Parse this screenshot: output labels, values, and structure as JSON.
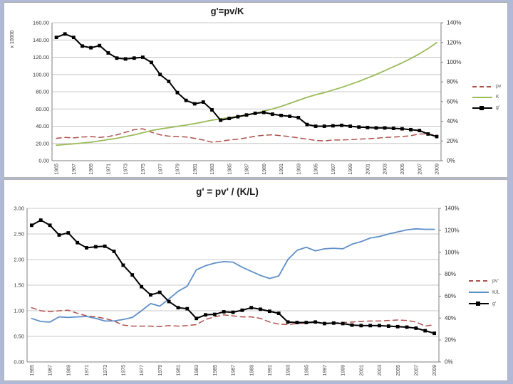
{
  "page": {
    "background_color": "#b0b9d6",
    "chart_area_color": "#ffffff"
  },
  "chart_data": [
    {
      "type": "line",
      "title": "g'=pv/K",
      "left_axis_label": "x 10000",
      "grid": true,
      "legend_position": "right",
      "left_axis": {
        "min": 0,
        "max": 160,
        "step": 20,
        "tick_labels": [
          "160.00",
          "140.00",
          "120.00",
          "100.00",
          "80.00",
          "60.00",
          "40.00",
          "20.00",
          "0.00"
        ]
      },
      "right_axis": {
        "min": 0,
        "max": 140,
        "step": 20,
        "tick_labels": [
          "140%",
          "120%",
          "100%",
          "80%",
          "60%",
          "40%",
          "20%",
          "0%"
        ]
      },
      "x_axis": {
        "start_year": 1965,
        "end_year": 2009,
        "tick_labels": [
          "1965",
          "1967",
          "1969",
          "1971",
          "1973",
          "1975",
          "1977",
          "1979",
          "1981",
          "1983",
          "1985",
          "1987",
          "1989",
          "1991",
          "1993",
          "1995",
          "1997",
          "1999",
          "2001",
          "2003",
          "2005",
          "2007",
          "2009"
        ]
      },
      "series": [
        {
          "name": "pv",
          "color": "#b0504a",
          "dash": true,
          "marker": false,
          "values": [
            26,
            27,
            26.5,
            27.5,
            28,
            27,
            28,
            30,
            33,
            36,
            37,
            33,
            30,
            28.5,
            28,
            27.5,
            26,
            24,
            21.5,
            22.5,
            24,
            25,
            26.5,
            28.5,
            29.5,
            30,
            29,
            28,
            26.5,
            25,
            23.5,
            23,
            24,
            24,
            24.5,
            25,
            25.5,
            26,
            27,
            27.5,
            28,
            29,
            31,
            31,
            29
          ]
        },
        {
          "name": "K",
          "color": "#9bbb59",
          "dash": false,
          "marker": false,
          "values": [
            18,
            18.8,
            19.6,
            20.5,
            21.5,
            23,
            24.5,
            26,
            28,
            30,
            32.5,
            35,
            36.8,
            38.3,
            39.8,
            41.3,
            43,
            45,
            47,
            48.5,
            50,
            51.5,
            53.2,
            55,
            57.5,
            60,
            63,
            66.5,
            70,
            73.5,
            76.5,
            79,
            82,
            85,
            88.5,
            92,
            96,
            100,
            104.5,
            109,
            113.5,
            118.5,
            124,
            130,
            137
          ]
        },
        {
          "name": "g'",
          "color": "#000000",
          "dash": false,
          "marker": true,
          "values": [
            143,
            147,
            143,
            133,
            131,
            133.5,
            125,
            119,
            118,
            119,
            120,
            114,
            100,
            92,
            79,
            70,
            66,
            68,
            59,
            47,
            49,
            51,
            53,
            55,
            56,
            54,
            52.5,
            51.5,
            50,
            42,
            40,
            40,
            40.5,
            41,
            40,
            39,
            38.5,
            38,
            38,
            37.5,
            37,
            36,
            35,
            31,
            28
          ]
        }
      ]
    },
    {
      "type": "line",
      "title": "g' = pv' / (K/L)",
      "left_axis_label": "",
      "grid": true,
      "legend_position": "right",
      "left_axis": {
        "min": 0,
        "max": 3,
        "step": 0.5,
        "tick_labels": [
          "3.00",
          "2.50",
          "2.00",
          "1.50",
          "1.00",
          "0.50",
          "0.00"
        ]
      },
      "right_axis": {
        "min": 0,
        "max": 140,
        "step": 20,
        "tick_labels": [
          "140%",
          "120%",
          "100%",
          "80%",
          "60%",
          "40%",
          "20%",
          "0%"
        ]
      },
      "x_axis": {
        "start_year": 1965,
        "end_year": 2009,
        "tick_labels": [
          "1965",
          "1967",
          "1969",
          "1971",
          "1973",
          "1975",
          "1977",
          "1979",
          "1981",
          "1983",
          "1985",
          "1987",
          "1989",
          "1991",
          "1993",
          "1995",
          "1997",
          "1999",
          "2001",
          "2003",
          "2005",
          "2007",
          "2009"
        ]
      },
      "series": [
        {
          "name": "pv'",
          "color": "#b0504a",
          "dash": true,
          "marker": false,
          "values": [
            1.06,
            1.0,
            0.98,
            1.0,
            1.01,
            0.95,
            0.9,
            0.88,
            0.85,
            0.8,
            0.72,
            0.7,
            0.7,
            0.7,
            0.69,
            0.71,
            0.7,
            0.71,
            0.73,
            0.83,
            0.88,
            0.92,
            0.9,
            0.88,
            0.88,
            0.85,
            0.78,
            0.74,
            0.73,
            0.75,
            0.76,
            0.77,
            0.76,
            0.76,
            0.77,
            0.78,
            0.79,
            0.8,
            0.8,
            0.81,
            0.82,
            0.81,
            0.78,
            0.7,
            0.73
          ]
        },
        {
          "name": "K/L",
          "color": "#5f8fc7",
          "dash": false,
          "marker": false,
          "values": [
            0.85,
            0.79,
            0.78,
            0.88,
            0.87,
            0.88,
            0.89,
            0.85,
            0.8,
            0.8,
            0.83,
            0.87,
            1.0,
            1.14,
            1.09,
            1.23,
            1.38,
            1.48,
            1.8,
            1.88,
            1.93,
            1.96,
            1.95,
            1.85,
            1.77,
            1.69,
            1.63,
            1.68,
            2.0,
            2.18,
            2.24,
            2.17,
            2.21,
            2.22,
            2.21,
            2.3,
            2.35,
            2.42,
            2.45,
            2.5,
            2.54,
            2.58,
            2.6,
            2.59,
            2.59
          ]
        },
        {
          "name": "g'",
          "color": "#000000",
          "dash": false,
          "marker": true,
          "values": [
            2.67,
            2.77,
            2.67,
            2.48,
            2.52,
            2.33,
            2.23,
            2.25,
            2.26,
            2.16,
            1.89,
            1.7,
            1.47,
            1.31,
            1.36,
            1.18,
            1.06,
            1.04,
            0.85,
            0.92,
            0.93,
            0.98,
            0.97,
            1.01,
            1.06,
            1.03,
            0.99,
            0.95,
            0.78,
            0.77,
            0.77,
            0.78,
            0.75,
            0.76,
            0.75,
            0.72,
            0.71,
            0.71,
            0.71,
            0.7,
            0.69,
            0.68,
            0.66,
            0.61,
            0.56
          ]
        }
      ]
    }
  ]
}
